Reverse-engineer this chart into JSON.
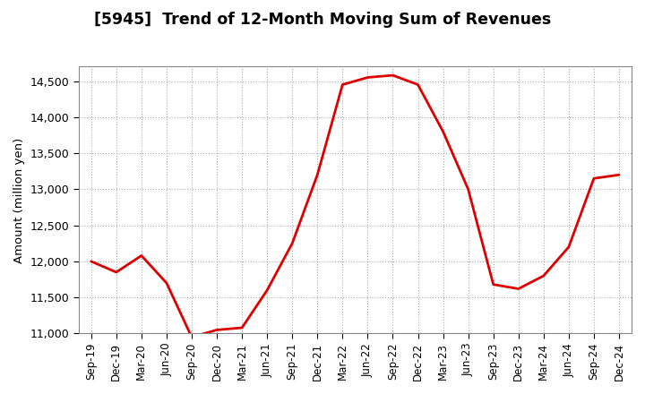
{
  "title": "[5945]  Trend of 12-Month Moving Sum of Revenues",
  "ylabel": "Amount (million yen)",
  "line_color": "#DD0000",
  "background_color": "#ffffff",
  "plot_background_color": "#ffffff",
  "grid_color": "#aaaaaa",
  "ylim": [
    11000,
    14700
  ],
  "yticks": [
    11000,
    11500,
    12000,
    12500,
    13000,
    13500,
    14000,
    14500
  ],
  "x_labels": [
    "Sep-19",
    "Dec-19",
    "Mar-20",
    "Jun-20",
    "Sep-20",
    "Dec-20",
    "Mar-21",
    "Jun-21",
    "Sep-21",
    "Dec-21",
    "Mar-22",
    "Jun-22",
    "Sep-22",
    "Dec-22",
    "Mar-23",
    "Jun-23",
    "Sep-23",
    "Dec-23",
    "Mar-24",
    "Jun-24",
    "Sep-24",
    "Dec-24"
  ],
  "values": [
    12000,
    11850,
    12080,
    11700,
    10950,
    11050,
    11080,
    11600,
    12250,
    13200,
    14450,
    14550,
    14580,
    14450,
    13800,
    13000,
    11680,
    11620,
    11800,
    12200,
    13150,
    13200
  ]
}
